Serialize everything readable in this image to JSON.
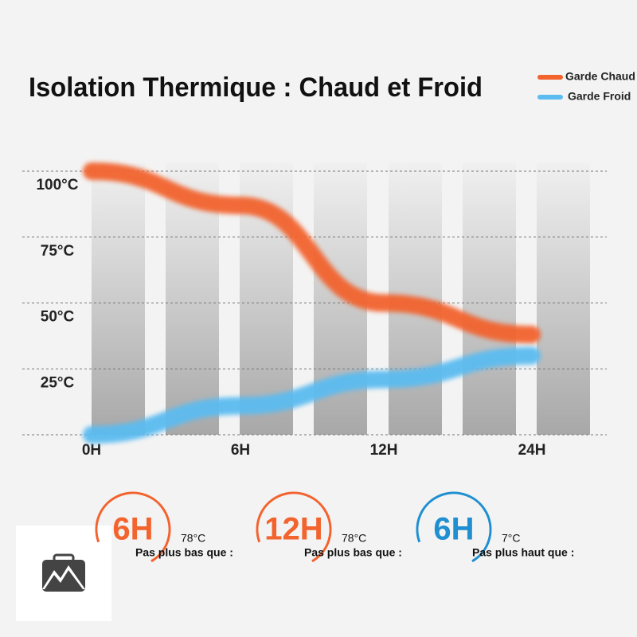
{
  "chart_data": {
    "type": "line",
    "title": "Isolation Thermique : Chaud et Froid",
    "categories": [
      "0H",
      "6H",
      "12H",
      "24H"
    ],
    "series": [
      {
        "name": "Garde Chaud",
        "color": "#f2632e",
        "values": [
          100,
          87,
          50,
          38
        ]
      },
      {
        "name": "Garde Froid",
        "color": "#5cbcf0",
        "values": [
          0,
          11,
          21,
          30
        ]
      }
    ],
    "ylim": [
      0,
      100
    ],
    "yticks": [
      {
        "value": 25,
        "label": "25°C"
      },
      {
        "value": 50,
        "label": "50°C"
      },
      {
        "value": 75,
        "label": "75°C"
      },
      {
        "value": 100,
        "label": "100°C"
      }
    ],
    "grid": true
  },
  "badges": [
    {
      "hours": "6H",
      "temperature": "78°C",
      "text": "Pas plus bas que :",
      "color": "#f2632e"
    },
    {
      "hours": "12H",
      "temperature": "78°C",
      "text": "Pas plus bas que :",
      "color": "#f2632e"
    },
    {
      "hours": "6H",
      "temperature": "7°C",
      "text": "Pas plus haut que :",
      "color": "#1f8fd1"
    }
  ]
}
